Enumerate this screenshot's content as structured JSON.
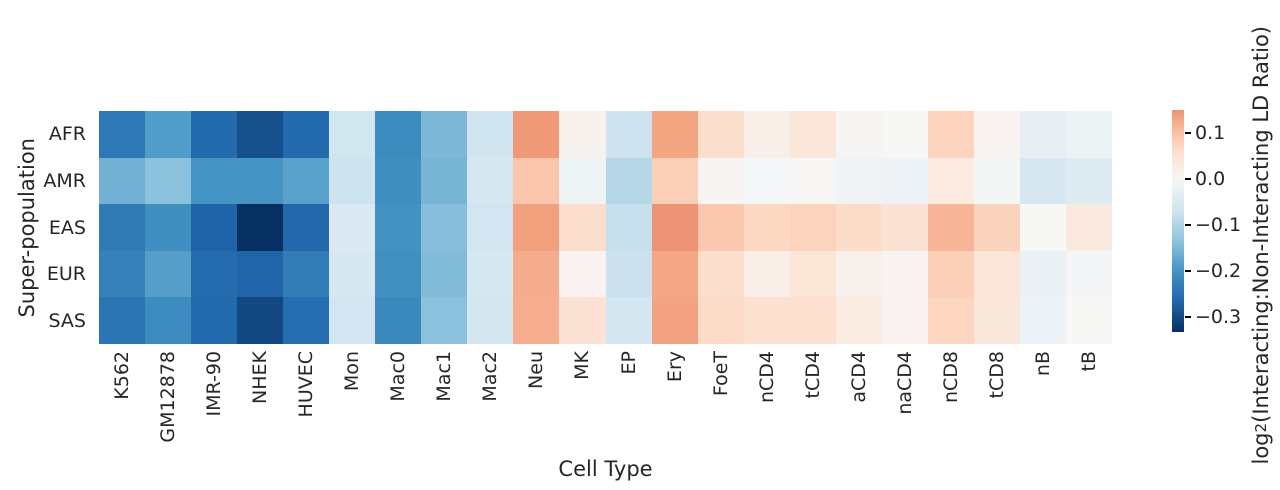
{
  "chart_data": {
    "type": "heatmap",
    "title": "",
    "xlabel": "Cell Type",
    "ylabel": "Super-population",
    "x_categories": [
      "K562",
      "GM12878",
      "IMR-90",
      "NHEK",
      "HUVEC",
      "Mon",
      "Mac0",
      "Mac1",
      "Mac2",
      "Neu",
      "MK",
      "EP",
      "Ery",
      "FoeT",
      "nCD4",
      "tCD4",
      "aCD4",
      "naCD4",
      "nCD8",
      "tCD8",
      "nB",
      "tB"
    ],
    "y_categories": [
      "AFR",
      "AMR",
      "EAS",
      "EUR",
      "SAS"
    ],
    "values": [
      [
        -0.24,
        -0.188,
        -0.261,
        -0.295,
        -0.26,
        -0.064,
        -0.212,
        -0.15,
        -0.066,
        0.145,
        0.013,
        -0.071,
        0.133,
        0.058,
        0.02,
        0.04,
        0.004,
        0.001,
        0.075,
        0.01,
        -0.028,
        -0.017
      ],
      [
        -0.16,
        -0.138,
        -0.199,
        -0.198,
        -0.181,
        -0.071,
        -0.205,
        -0.155,
        -0.058,
        0.094,
        -0.016,
        -0.096,
        0.081,
        0.006,
        -0.003,
        0.003,
        -0.013,
        -0.02,
        0.032,
        -0.005,
        -0.058,
        -0.043
      ],
      [
        -0.237,
        -0.205,
        -0.27,
        -0.333,
        -0.263,
        -0.049,
        -0.202,
        -0.142,
        -0.065,
        0.138,
        0.06,
        -0.078,
        0.15,
        0.09,
        0.072,
        0.075,
        0.063,
        0.05,
        0.112,
        0.078,
        0.001,
        0.034
      ],
      [
        -0.226,
        -0.185,
        -0.258,
        -0.268,
        -0.234,
        -0.056,
        -0.204,
        -0.147,
        -0.057,
        0.124,
        0.01,
        -0.073,
        0.131,
        0.058,
        0.022,
        0.044,
        0.016,
        0.01,
        0.081,
        0.042,
        -0.024,
        -0.006
      ],
      [
        -0.244,
        -0.211,
        -0.262,
        -0.304,
        -0.255,
        -0.065,
        -0.216,
        -0.139,
        -0.062,
        0.122,
        0.049,
        -0.062,
        0.135,
        0.062,
        0.053,
        0.053,
        0.028,
        0.01,
        0.073,
        0.038,
        -0.02,
        0.001
      ]
    ],
    "vmin": -0.333,
    "vmax": 0.15,
    "center": 0,
    "colormap": "RdBu_r",
    "colormap_anchors": [
      [
        0.0,
        "#053061"
      ],
      [
        0.1,
        "#2166ac"
      ],
      [
        0.2,
        "#4393c3"
      ],
      [
        0.3,
        "#92c5de"
      ],
      [
        0.4,
        "#d1e5f0"
      ],
      [
        0.5,
        "#f7f7f7"
      ],
      [
        0.6,
        "#fddbc7"
      ],
      [
        0.7,
        "#f4a582"
      ],
      [
        0.8,
        "#d6604d"
      ],
      [
        0.9,
        "#b2182b"
      ],
      [
        1.0,
        "#67001f"
      ]
    ],
    "grid": false,
    "legend_position": "right-colorbar",
    "colorbar": {
      "ticks": [
        0.1,
        0.0,
        -0.1,
        -0.2,
        -0.3
      ],
      "tick_labels": [
        "0.1",
        "0.0",
        "−0.1",
        "−0.2",
        "−0.3"
      ],
      "label_prefix": "log",
      "label_sub": "2",
      "label_suffix": "(Interacting:Non-Interacting LD Ratio)"
    }
  }
}
